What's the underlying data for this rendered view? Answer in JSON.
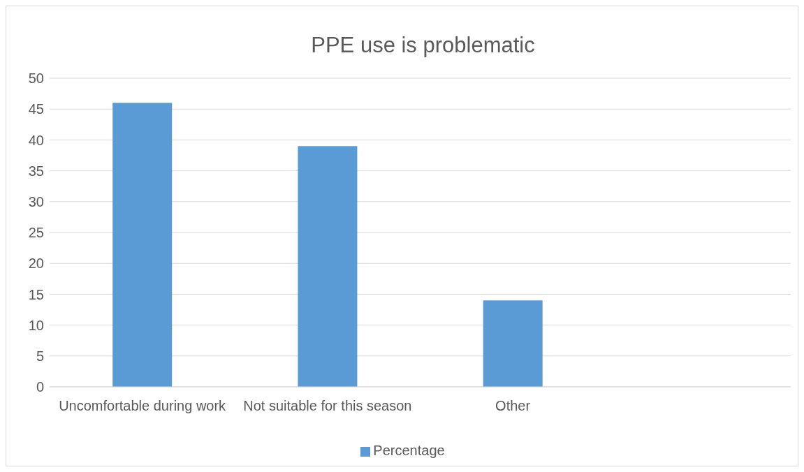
{
  "chart_data": {
    "type": "bar",
    "title": "PPE use is problematic",
    "categories": [
      "Uncomfortable during work",
      "Not suitable for this season",
      "Other",
      null
    ],
    "series": [
      {
        "name": "Percentage",
        "color": "#5b9bd5",
        "values": [
          46,
          39,
          14,
          null
        ]
      }
    ],
    "ylim": [
      0,
      50
    ],
    "yticks": [
      0,
      5,
      10,
      15,
      20,
      25,
      30,
      35,
      40,
      45,
      50
    ],
    "grid": "y",
    "legend": "bottom"
  }
}
